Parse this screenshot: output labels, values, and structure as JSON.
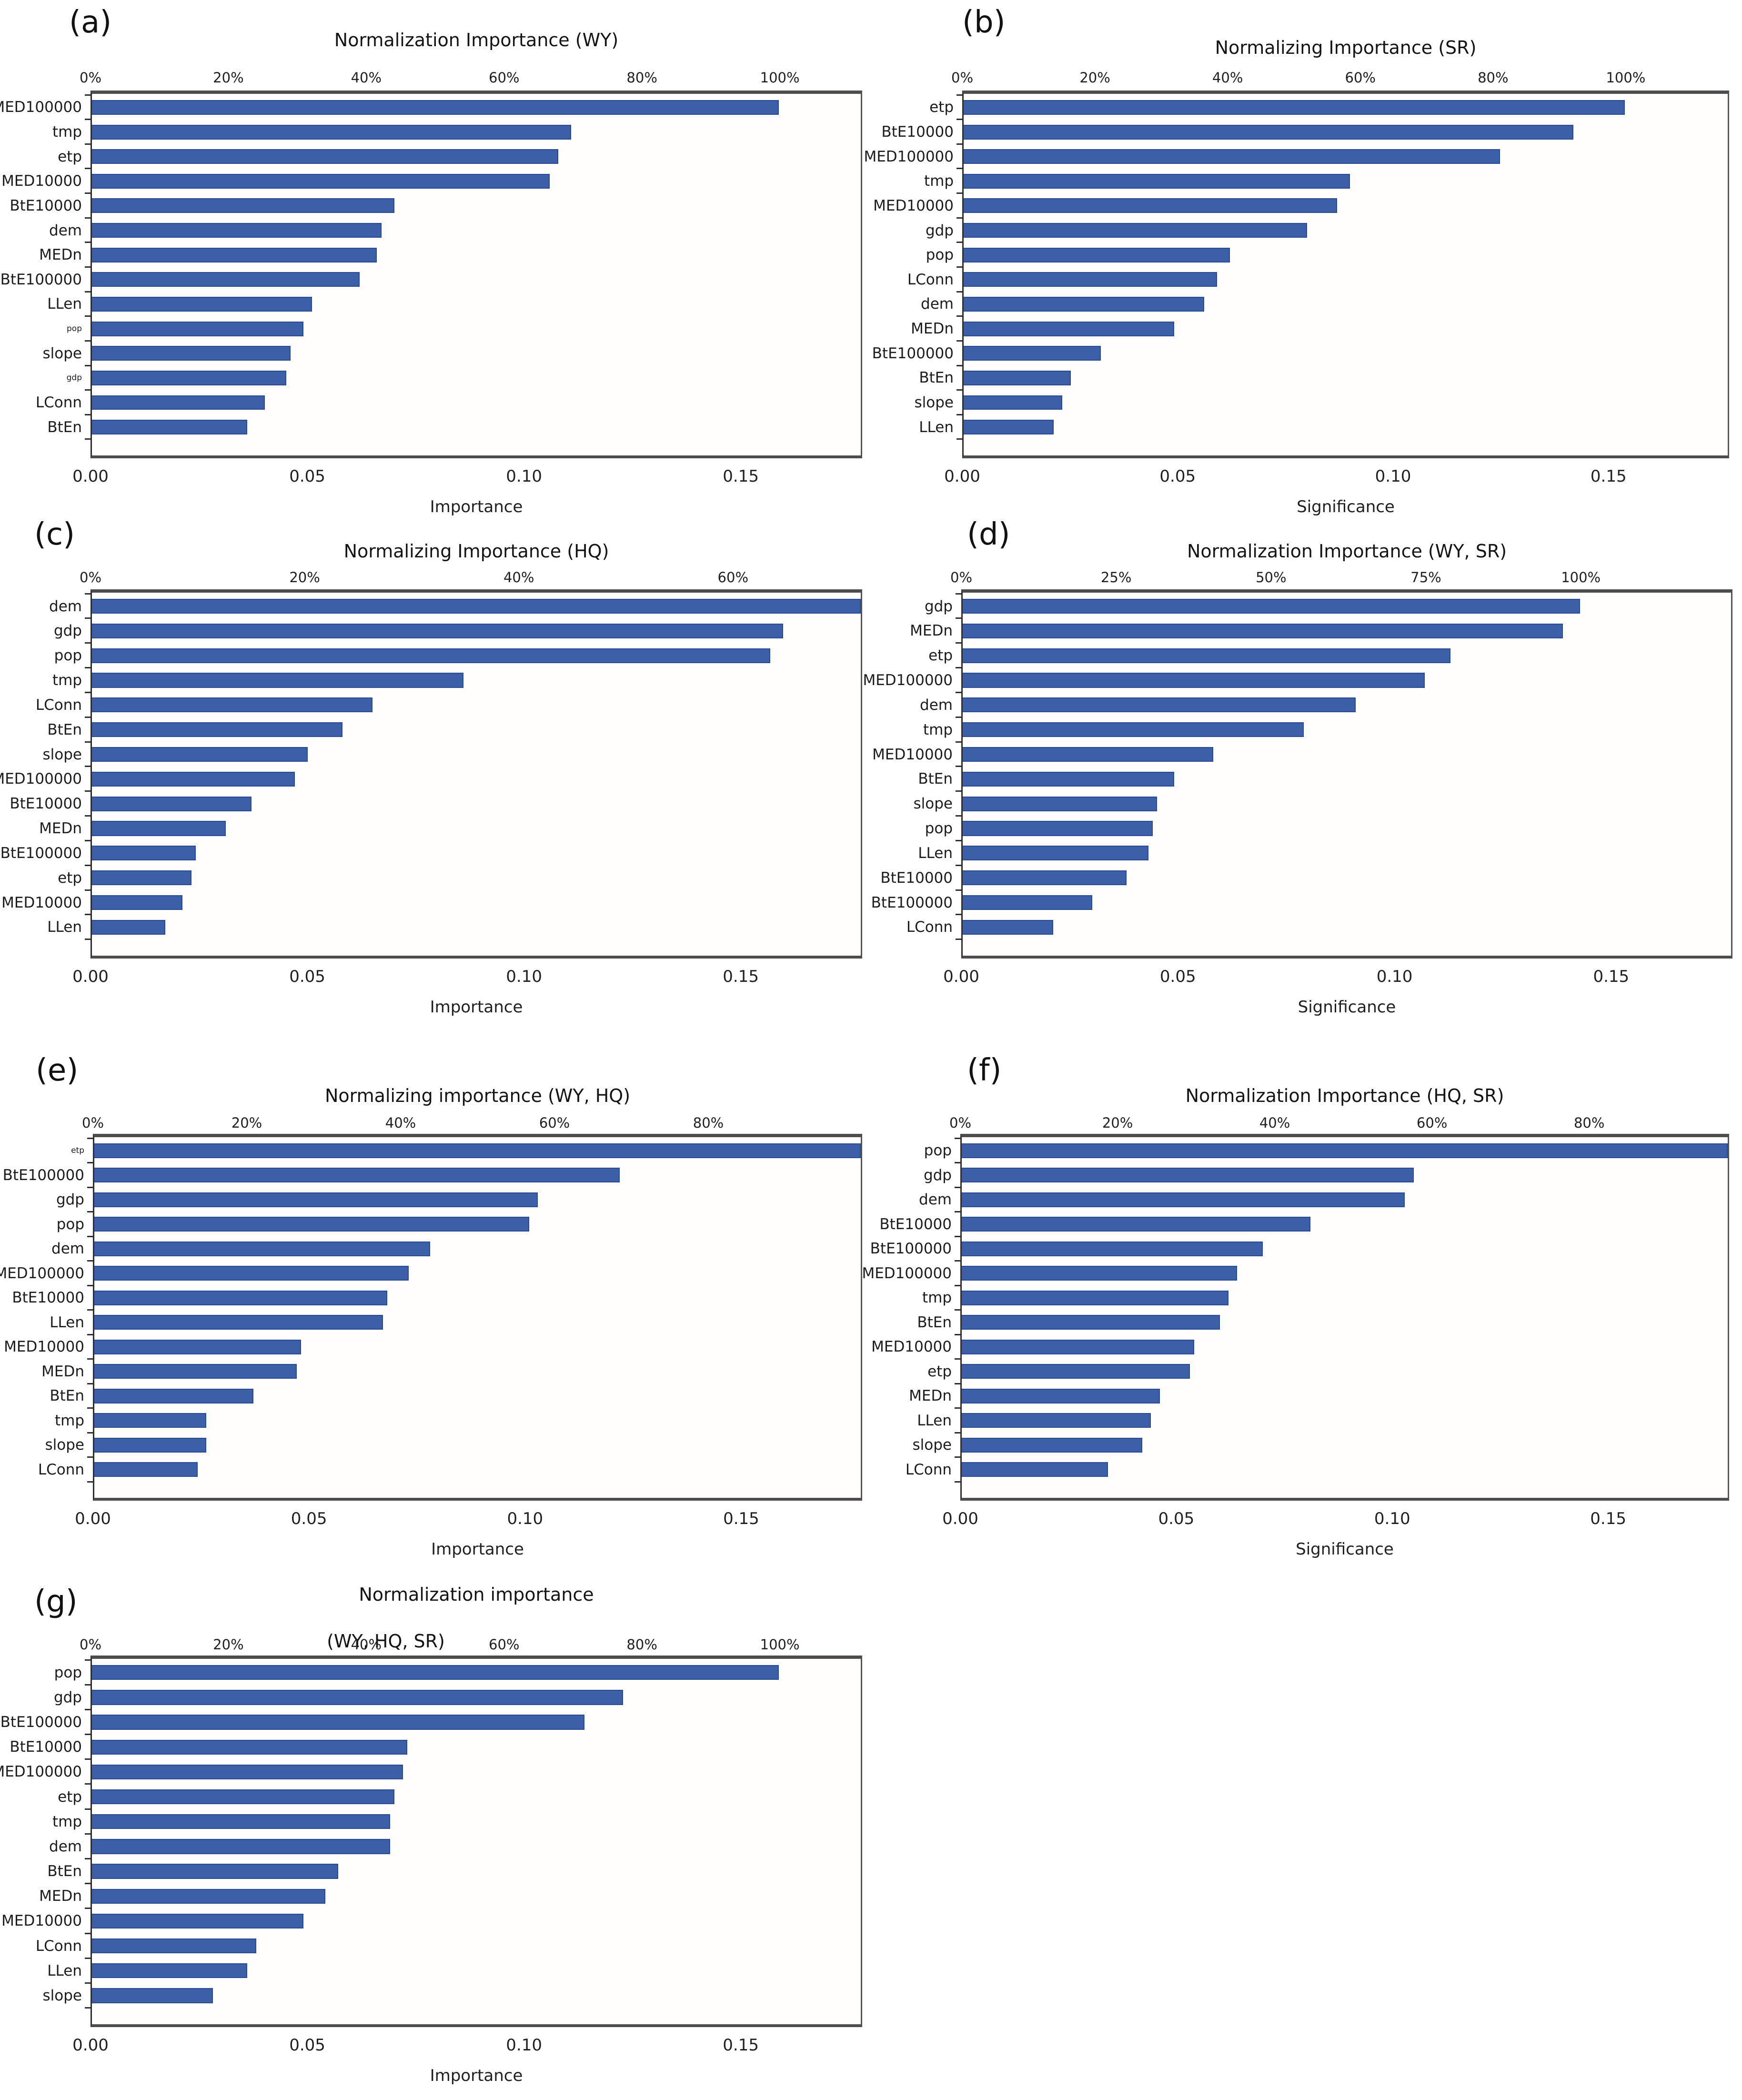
{
  "figure": {
    "bar_color": "#3c5fa7",
    "bar_border_color": "#2b4a94",
    "axis_color": "#4d4d4d",
    "background": "#ffffff"
  },
  "chart_data": [
    {
      "panel": "(a)",
      "type": "bar",
      "orientation": "horizontal",
      "title": "Normalization Importance (WY)",
      "title_line2": "",
      "xlabel": "Importance",
      "ylabel": "",
      "grid": false,
      "legend": "none",
      "xlim": [
        0,
        0.178
      ],
      "x_ticks": [
        "0.00",
        "0.05",
        "0.10",
        "0.15"
      ],
      "top_axis": {
        "unit": "percent",
        "ticks": [
          "0%",
          "20%",
          "40%",
          "60%",
          "80%",
          "100%"
        ],
        "value_at_100pct": 0.159
      },
      "categories": [
        "MED100000",
        "tmp",
        "etp",
        "MED10000",
        "BtE10000",
        "dem",
        "MEDn",
        "BtE100000",
        "LLen",
        "pop",
        "slope",
        "gdp",
        "LConn",
        "BtEn"
      ],
      "values": [
        0.159,
        0.111,
        0.108,
        0.106,
        0.07,
        0.067,
        0.066,
        0.062,
        0.051,
        0.049,
        0.046,
        0.045,
        0.04,
        0.036
      ],
      "small_font_labels": [
        "pop",
        "gdp"
      ]
    },
    {
      "panel": "(b)",
      "type": "bar",
      "orientation": "horizontal",
      "title": "Normalizing Importance (SR)",
      "title_line2": "",
      "xlabel": "Significance",
      "ylabel": "",
      "grid": false,
      "legend": "none",
      "xlim": [
        0,
        0.178
      ],
      "x_ticks": [
        "0.00",
        "0.05",
        "0.10",
        "0.15"
      ],
      "top_axis": {
        "unit": "percent",
        "ticks": [
          "0%",
          "20%",
          "40%",
          "60%",
          "80%",
          "100%"
        ],
        "value_at_100pct": 0.154
      },
      "categories": [
        "etp",
        "BtE10000",
        "MED100000",
        "tmp",
        "MED10000",
        "gdp",
        "pop",
        "LConn",
        "dem",
        "MEDn",
        "BtE100000",
        "BtEn",
        "slope",
        "LLen"
      ],
      "values": [
        0.154,
        0.142,
        0.125,
        0.09,
        0.087,
        0.08,
        0.062,
        0.059,
        0.056,
        0.049,
        0.032,
        0.025,
        0.023,
        0.021
      ],
      "small_font_labels": []
    },
    {
      "panel": "(c)",
      "type": "bar",
      "orientation": "horizontal",
      "title": "Normalizing Importance (HQ)",
      "title_line2": "",
      "xlabel": "Importance",
      "ylabel": "",
      "grid": false,
      "legend": "none",
      "xlim": [
        0,
        0.178
      ],
      "x_ticks": [
        "0.00",
        "0.05",
        "0.10",
        "0.15"
      ],
      "top_axis": {
        "unit": "percent",
        "ticks": [
          "0%",
          "20%",
          "40%",
          "60%"
        ],
        "value_at_100pct": 0.247
      },
      "categories": [
        "dem",
        "gdp",
        "pop",
        "tmp",
        "LConn",
        "BtEn",
        "slope",
        "MED100000",
        "BtE10000",
        "MEDn",
        "BtE100000",
        "etp",
        "MED10000",
        "LLen"
      ],
      "values": [
        0.178,
        0.16,
        0.157,
        0.086,
        0.065,
        0.058,
        0.05,
        0.047,
        0.037,
        0.031,
        0.024,
        0.023,
        0.021,
        0.017
      ],
      "small_font_labels": []
    },
    {
      "panel": "(d)",
      "type": "bar",
      "orientation": "horizontal",
      "title": "Normalization Importance (WY, SR)",
      "title_line2": "",
      "xlabel": "Significance",
      "ylabel": "",
      "grid": false,
      "legend": "none",
      "xlim": [
        0,
        0.178
      ],
      "x_ticks": [
        "0.00",
        "0.05",
        "0.10",
        "0.15"
      ],
      "top_axis": {
        "unit": "percent",
        "ticks": [
          "0%",
          "25%",
          "50%",
          "75%",
          "100%"
        ],
        "value_at_100pct": 0.143
      },
      "categories": [
        "gdp",
        "MEDn",
        "etp",
        "MED100000",
        "dem",
        "tmp",
        "MED10000",
        "BtEn",
        "slope",
        "pop",
        "LLen",
        "BtE10000",
        "BtE100000",
        "LConn"
      ],
      "values": [
        0.143,
        0.139,
        0.113,
        0.107,
        0.091,
        0.079,
        0.058,
        0.049,
        0.045,
        0.044,
        0.043,
        0.038,
        0.03,
        0.021
      ],
      "small_font_labels": []
    },
    {
      "panel": "(e)",
      "type": "bar",
      "orientation": "horizontal",
      "title": "Normalizing importance (WY, HQ)",
      "title_line2": "",
      "xlabel": "Importance",
      "ylabel": "",
      "grid": false,
      "legend": "none",
      "xlim": [
        0,
        0.178
      ],
      "x_ticks": [
        "0.00",
        "0.05",
        "0.10",
        "0.15"
      ],
      "top_axis": {
        "unit": "percent",
        "ticks": [
          "0%",
          "20%",
          "40%",
          "60%",
          "80%"
        ],
        "value_at_100pct": 0.178
      },
      "categories": [
        "etp",
        "BtE100000",
        "gdp",
        "pop",
        "dem",
        "MED100000",
        "BtE10000",
        "LLen",
        "MED10000",
        "MEDn",
        "BtEn",
        "tmp",
        "slope",
        "LConn"
      ],
      "values": [
        0.178,
        0.122,
        0.103,
        0.101,
        0.078,
        0.073,
        0.068,
        0.067,
        0.048,
        0.047,
        0.037,
        0.026,
        0.026,
        0.024
      ],
      "small_font_labels": [
        "etp"
      ]
    },
    {
      "panel": "(f)",
      "type": "bar",
      "orientation": "horizontal",
      "title": "Normalization Importance (HQ, SR)",
      "title_line2": "",
      "xlabel": "Significance",
      "ylabel": "",
      "grid": false,
      "legend": "none",
      "xlim": [
        0,
        0.178
      ],
      "x_ticks": [
        "0.00",
        "0.05",
        "0.10",
        "0.15"
      ],
      "top_axis": {
        "unit": "percent",
        "ticks": [
          "0%",
          "20%",
          "40%",
          "60%",
          "80%"
        ],
        "value_at_100pct": 0.182
      },
      "categories": [
        "pop",
        "gdp",
        "dem",
        "BtE10000",
        "BtE100000",
        "MED100000",
        "tmp",
        "BtEn",
        "MED10000",
        "etp",
        "MEDn",
        "LLen",
        "slope",
        "LConn"
      ],
      "values": [
        0.178,
        0.105,
        0.103,
        0.081,
        0.07,
        0.064,
        0.062,
        0.06,
        0.054,
        0.053,
        0.046,
        0.044,
        0.042,
        0.034
      ],
      "small_font_labels": []
    },
    {
      "panel": "(g)",
      "type": "bar",
      "orientation": "horizontal",
      "title": "Normalization importance",
      "title_line2": "(WY, HQ, SR)",
      "xlabel": "Importance",
      "ylabel": "",
      "grid": false,
      "legend": "none",
      "xlim": [
        0,
        0.178
      ],
      "x_ticks": [
        "0.00",
        "0.05",
        "0.10",
        "0.15"
      ],
      "top_axis": {
        "unit": "percent",
        "ticks": [
          "0%",
          "20%",
          "40%",
          "60%",
          "80%",
          "100%"
        ],
        "value_at_100pct": 0.159
      },
      "categories": [
        "pop",
        "gdp",
        "BtE100000",
        "BtE10000",
        "MED100000",
        "etp",
        "tmp",
        "dem",
        "BtEn",
        "MEDn",
        "MED10000",
        "LConn",
        "LLen",
        "slope"
      ],
      "values": [
        0.159,
        0.123,
        0.114,
        0.073,
        0.072,
        0.07,
        0.069,
        0.069,
        0.057,
        0.054,
        0.049,
        0.038,
        0.036,
        0.028
      ],
      "small_font_labels": []
    }
  ]
}
